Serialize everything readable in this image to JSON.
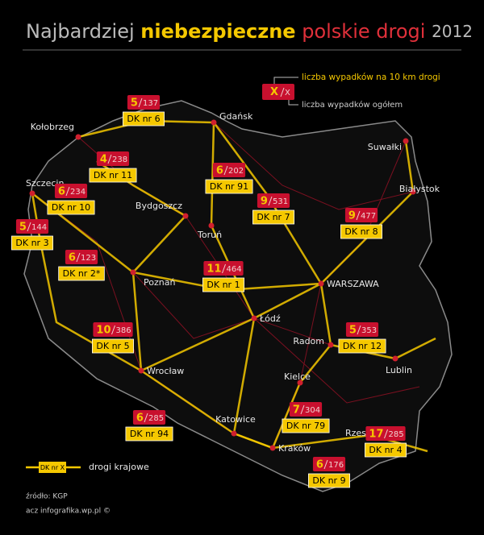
{
  "header": {
    "title_part1": "Najbardziej",
    "title_part2": "niebezpieczne",
    "title_part3": "polskie drogi",
    "year": "2012"
  },
  "legend": {
    "rate_symbol": "X",
    "total_symbol": "X",
    "rate_label": "liczba wypadków na 10 km drogi",
    "total_label": "liczba wypadków ogółem",
    "road_symbol": "DK nr X",
    "road_label": "drogi krajowe"
  },
  "cities": [
    "Gdańsk",
    "Kołobrzeg",
    "Suwałki",
    "Szczecin",
    "Białystok",
    "Bydgoszcz",
    "Toruń",
    "Poznań",
    "WARSZAWA",
    "Łódź",
    "Radom",
    "Lublin",
    "Wrocław",
    "Kielce",
    "Katowice",
    "Kraków",
    "Rzeszów"
  ],
  "roads": [
    {
      "rate": 5,
      "total": 137,
      "label": "DK nr 6"
    },
    {
      "rate": 4,
      "total": 238,
      "label": "DK nr 11"
    },
    {
      "rate": 6,
      "total": 202,
      "label": "DK nr 91"
    },
    {
      "rate": 6,
      "total": 234,
      "label": "DK nr 10"
    },
    {
      "rate": 9,
      "total": 531,
      "label": "DK nr 7"
    },
    {
      "rate": 9,
      "total": 477,
      "label": "DK nr 8"
    },
    {
      "rate": 5,
      "total": 144,
      "label": "DK nr 3"
    },
    {
      "rate": 6,
      "total": 123,
      "label": "DK nr 2*"
    },
    {
      "rate": 11,
      "total": 464,
      "label": "DK nr 1"
    },
    {
      "rate": 10,
      "total": 386,
      "label": "DK nr 5"
    },
    {
      "rate": 5,
      "total": 353,
      "label": "DK nr 12"
    },
    {
      "rate": 6,
      "total": 285,
      "label": "DK nr 94"
    },
    {
      "rate": 7,
      "total": 304,
      "label": "DK nr 79"
    },
    {
      "rate": 17,
      "total": 285,
      "label": "DK nr 4"
    },
    {
      "rate": 6,
      "total": 176,
      "label": "DK nr 9"
    }
  ],
  "footer": {
    "source": "źródło: KGP",
    "credit": "acz infografika.wp.pl ©"
  }
}
